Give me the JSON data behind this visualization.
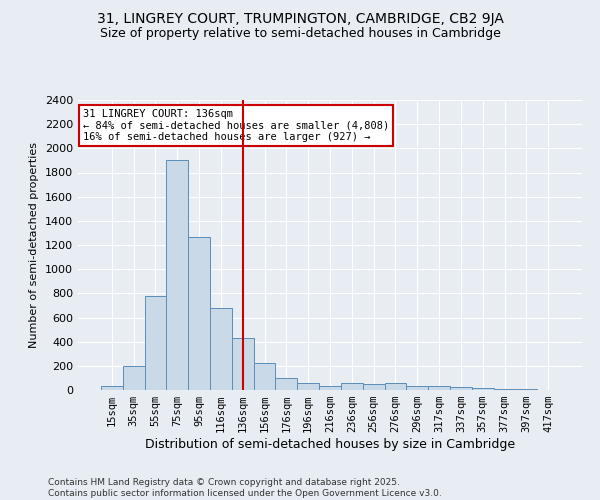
{
  "title1": "31, LINGREY COURT, TRUMPINGTON, CAMBRIDGE, CB2 9JA",
  "title2": "Size of property relative to semi-detached houses in Cambridge",
  "xlabel": "Distribution of semi-detached houses by size in Cambridge",
  "ylabel": "Number of semi-detached properties",
  "categories": [
    "15sqm",
    "35sqm",
    "55sqm",
    "75sqm",
    "95sqm",
    "116sqm",
    "136sqm",
    "156sqm",
    "176sqm",
    "196sqm",
    "216sqm",
    "236sqm",
    "256sqm",
    "276sqm",
    "296sqm",
    "317sqm",
    "337sqm",
    "357sqm",
    "377sqm",
    "397sqm",
    "417sqm"
  ],
  "values": [
    30,
    200,
    780,
    1900,
    1270,
    680,
    430,
    220,
    100,
    55,
    30,
    60,
    50,
    60,
    30,
    30,
    25,
    15,
    10,
    5,
    0
  ],
  "bar_color": "#c9d9e8",
  "bar_edge_color": "#5b8db8",
  "marker_index": 6,
  "marker_line_color": "#cc0000",
  "annotation_text": "31 LINGREY COURT: 136sqm\n← 84% of semi-detached houses are smaller (4,808)\n16% of semi-detached houses are larger (927) →",
  "annotation_box_color": "#ffffff",
  "annotation_box_edge": "#cc0000",
  "ylim": [
    0,
    2400
  ],
  "yticks": [
    0,
    200,
    400,
    600,
    800,
    1000,
    1200,
    1400,
    1600,
    1800,
    2000,
    2200,
    2400
  ],
  "background_color": "#e8edf4",
  "grid_color": "#ffffff",
  "footnote": "Contains HM Land Registry data © Crown copyright and database right 2025.\nContains public sector information licensed under the Open Government Licence v3.0."
}
